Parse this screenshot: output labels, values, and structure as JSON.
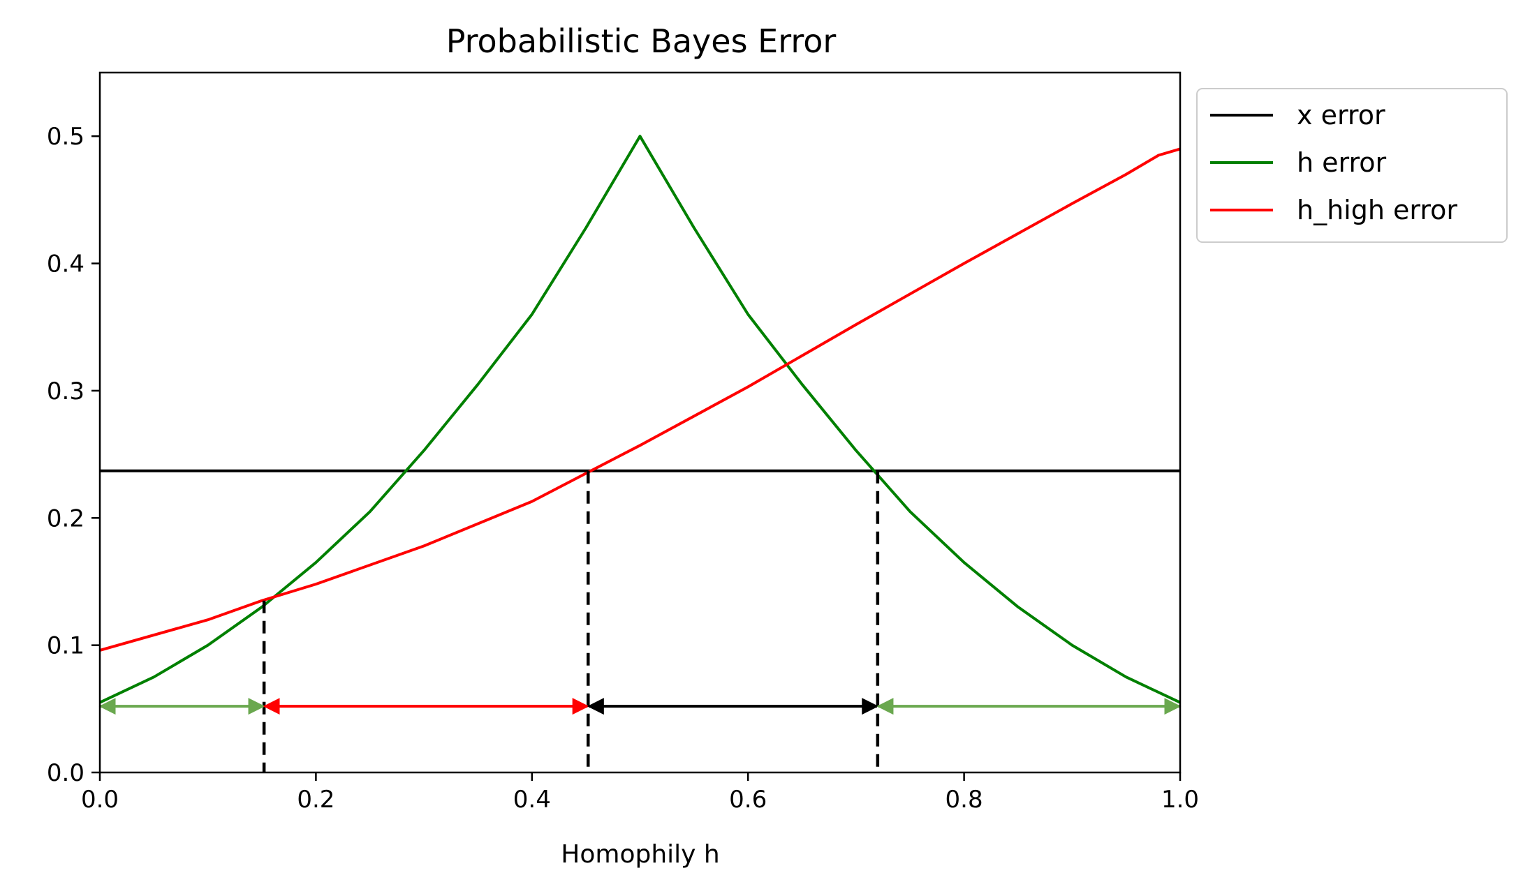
{
  "chart_data": {
    "type": "line",
    "title": "Probabilistic Bayes Error",
    "xlabel": "Homophily h",
    "ylabel": "",
    "xlim": [
      0,
      1
    ],
    "ylim": [
      0,
      0.55
    ],
    "xticks": [
      0.0,
      0.2,
      0.4,
      0.6,
      0.8,
      1.0
    ],
    "xtick_labels": [
      "0.0",
      "0.2",
      "0.4",
      "0.6",
      "0.8",
      "1.0"
    ],
    "yticks": [
      0.0,
      0.1,
      0.2,
      0.3,
      0.4,
      0.5
    ],
    "ytick_labels": [
      "0.0",
      "0.1",
      "0.2",
      "0.3",
      "0.4",
      "0.5"
    ],
    "grid": false,
    "legend_position": "outside upper right",
    "series": [
      {
        "name": "x error",
        "color": "#000000",
        "x": [
          0.0,
          1.0
        ],
        "y": [
          0.237,
          0.237
        ]
      },
      {
        "name": "h error",
        "color": "#008000",
        "x": [
          0.0,
          0.05,
          0.1,
          0.15,
          0.2,
          0.25,
          0.3,
          0.35,
          0.4,
          0.45,
          0.5,
          0.55,
          0.6,
          0.65,
          0.7,
          0.75,
          0.8,
          0.85,
          0.9,
          0.95,
          1.0
        ],
        "y": [
          0.055,
          0.075,
          0.1,
          0.13,
          0.165,
          0.205,
          0.253,
          0.305,
          0.36,
          0.428,
          0.5,
          0.428,
          0.36,
          0.305,
          0.253,
          0.205,
          0.165,
          0.13,
          0.1,
          0.075,
          0.055
        ]
      },
      {
        "name": "h_high error",
        "color": "#ff0000",
        "x": [
          0.0,
          0.1,
          0.15,
          0.2,
          0.3,
          0.4,
          0.45,
          0.5,
          0.6,
          0.7,
          0.8,
          0.9,
          0.95,
          0.98,
          1.0
        ],
        "y": [
          0.096,
          0.12,
          0.135,
          0.148,
          0.178,
          0.213,
          0.235,
          0.257,
          0.303,
          0.352,
          0.4,
          0.447,
          0.47,
          0.485,
          0.49
        ]
      }
    ],
    "vlines": [
      {
        "x": 0.152,
        "y_top": 0.135,
        "style": "dashed",
        "color": "#000000"
      },
      {
        "x": 0.452,
        "y_top": 0.237,
        "style": "dashed",
        "color": "#000000"
      },
      {
        "x": 0.72,
        "y_top": 0.237,
        "style": "dashed",
        "color": "#000000"
      }
    ],
    "intervals": [
      {
        "from": 0.0,
        "to": 0.152,
        "y": 0.052,
        "color": "#6aa84f"
      },
      {
        "from": 0.152,
        "to": 0.452,
        "y": 0.052,
        "color": "#ff0000"
      },
      {
        "from": 0.452,
        "to": 0.72,
        "y": 0.052,
        "color": "#000000"
      },
      {
        "from": 0.72,
        "to": 1.0,
        "y": 0.052,
        "color": "#6aa84f"
      }
    ]
  }
}
